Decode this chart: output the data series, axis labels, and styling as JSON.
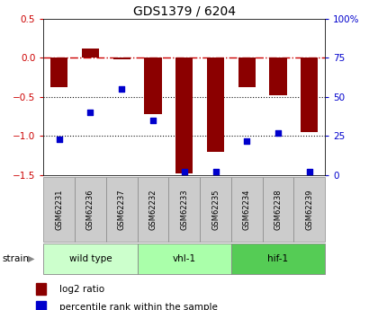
{
  "title": "GDS1379 / 6204",
  "samples": [
    "GSM62231",
    "GSM62236",
    "GSM62237",
    "GSM62232",
    "GSM62233",
    "GSM62235",
    "GSM62234",
    "GSM62238",
    "GSM62239"
  ],
  "log2_ratio": [
    -0.38,
    0.12,
    -0.02,
    -0.72,
    -1.48,
    -1.2,
    -0.38,
    -0.48,
    -0.95
  ],
  "percentile_rank": [
    23,
    40,
    55,
    35,
    2,
    2,
    22,
    27,
    2
  ],
  "groups": [
    {
      "label": "wild type",
      "start": 0,
      "end": 3,
      "color": "#ccffcc"
    },
    {
      "label": "vhl-1",
      "start": 3,
      "end": 6,
      "color": "#aaffaa"
    },
    {
      "label": "hif-1",
      "start": 6,
      "end": 9,
      "color": "#55cc55"
    }
  ],
  "ylim_left": [
    -1.5,
    0.5
  ],
  "ylim_right": [
    0,
    100
  ],
  "bar_color": "#8b0000",
  "dot_color": "#0000cc",
  "hline_color": "#cc0000",
  "dotline_color": "#111111",
  "bar_width": 0.55,
  "left_tick_color": "#cc0000",
  "right_tick_color": "#0000cc",
  "left_yticks": [
    -1.5,
    -1.0,
    -0.5,
    0.0,
    0.5
  ],
  "right_yticks": [
    0,
    25,
    50,
    75,
    100
  ],
  "right_yticklabels": [
    "0",
    "25",
    "50",
    "75",
    "100%"
  ],
  "sample_box_color": "#cccccc",
  "sample_box_edge": "#888888",
  "legend_items": [
    {
      "label": "log2 ratio",
      "color": "#8b0000"
    },
    {
      "label": "percentile rank within the sample",
      "color": "#0000cc"
    }
  ]
}
